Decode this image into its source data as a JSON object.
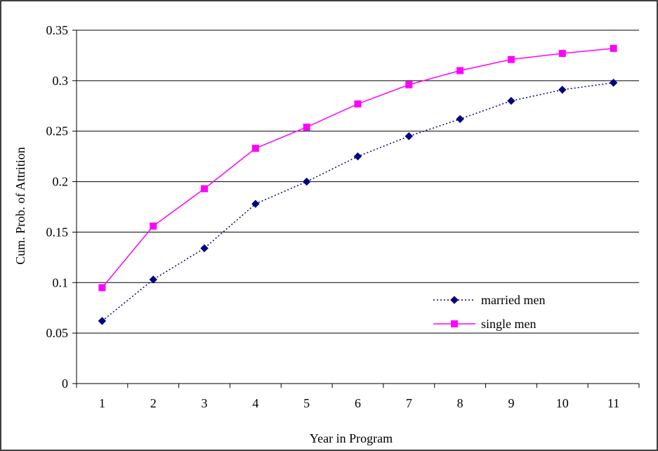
{
  "chart_data": {
    "type": "line",
    "title": "",
    "xlabel": "Year in Program",
    "ylabel": "Cum. Prob. of Attrition",
    "categories": [
      "1",
      "2",
      "3",
      "4",
      "5",
      "6",
      "7",
      "8",
      "9",
      "10",
      "11"
    ],
    "ylim": [
      0,
      0.35
    ],
    "yticks": [
      "0",
      "0.05",
      "0.1",
      "0.15",
      "0.2",
      "0.25",
      "0.3",
      "0.35"
    ],
    "grid": "horizontal",
    "legend_position": "lower-right",
    "series": [
      {
        "name": "married men",
        "values": [
          0.062,
          0.103,
          0.134,
          0.178,
          0.2,
          0.225,
          0.245,
          0.262,
          0.28,
          0.291,
          0.298
        ],
        "color": "#000080",
        "line_style": "dotted",
        "marker": "diamond"
      },
      {
        "name": "single men",
        "values": [
          0.095,
          0.156,
          0.193,
          0.233,
          0.254,
          0.277,
          0.296,
          0.31,
          0.321,
          0.327,
          0.332
        ],
        "color": "#FF00FF",
        "line_style": "solid",
        "marker": "square"
      }
    ]
  }
}
